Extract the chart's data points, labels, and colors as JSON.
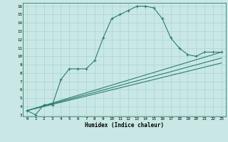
{
  "xlabel": "Humidex (Indice chaleur)",
  "bg_color": "#c9e8e5",
  "line_color": "#2e7d6e",
  "grid_color": "#a8d4d0",
  "xlim": [
    -0.5,
    23.5
  ],
  "ylim": [
    2.8,
    16.4
  ],
  "xticks": [
    0,
    1,
    2,
    3,
    4,
    5,
    6,
    7,
    8,
    9,
    10,
    11,
    12,
    13,
    14,
    15,
    16,
    17,
    18,
    19,
    20,
    21,
    22,
    23
  ],
  "yticks": [
    3,
    4,
    5,
    6,
    7,
    8,
    9,
    10,
    11,
    12,
    13,
    14,
    15,
    16
  ],
  "main_x": [
    0,
    1,
    2,
    3,
    4,
    5,
    6,
    7,
    8,
    9,
    10,
    11,
    12,
    13,
    14,
    15,
    16,
    17,
    18,
    19,
    20,
    21,
    22,
    23
  ],
  "main_y": [
    3.5,
    3.0,
    4.2,
    4.2,
    7.2,
    8.5,
    8.5,
    8.5,
    9.5,
    12.2,
    14.5,
    15.0,
    15.5,
    16.0,
    16.0,
    15.8,
    14.5,
    12.2,
    11.0,
    10.2,
    10.0,
    10.5,
    10.5,
    10.5
  ],
  "line2_x": [
    0,
    23
  ],
  "line2_y": [
    3.5,
    10.5
  ],
  "line3_x": [
    0,
    23
  ],
  "line3_y": [
    3.5,
    9.8
  ],
  "line4_x": [
    0,
    23
  ],
  "line4_y": [
    3.5,
    9.2
  ]
}
